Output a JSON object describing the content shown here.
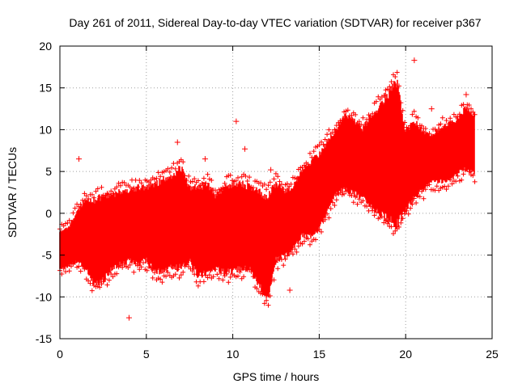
{
  "chart_data": {
    "type": "scatter",
    "title": "Day 261 of 2011, Sidereal Day-to-day VTEC variation (SDTVAR) for receiver p367",
    "xlabel": "GPS time / hours",
    "ylabel": "SDTVAR / TECUs",
    "xlim": [
      0,
      25
    ],
    "ylim": [
      -15,
      20
    ],
    "xticks": [
      0,
      5,
      10,
      15,
      20,
      25
    ],
    "yticks": [
      -15,
      -10,
      -5,
      0,
      5,
      10,
      15,
      20
    ],
    "grid": true,
    "marker": "+",
    "legend": "none",
    "colors": {
      "series": "#ff0000",
      "axes": "#000000",
      "grid": "#a0a0a0"
    },
    "series": [
      {
        "name": "SDTVAR",
        "envelope": {
          "x": [
            0.0,
            0.5,
            1.0,
            1.5,
            2.0,
            2.5,
            3.0,
            3.5,
            4.0,
            4.5,
            5.0,
            5.5,
            6.0,
            6.5,
            7.0,
            7.5,
            8.0,
            8.5,
            9.0,
            9.5,
            10.0,
            10.5,
            11.0,
            11.5,
            12.0,
            12.5,
            13.0,
            13.5,
            14.0,
            14.5,
            15.0,
            15.5,
            16.0,
            16.5,
            17.0,
            17.5,
            18.0,
            18.5,
            19.0,
            19.5,
            20.0,
            20.5,
            21.0,
            21.5,
            22.0,
            22.5,
            23.0,
            23.5,
            24.0
          ],
          "upper": [
            -2.0,
            -1.5,
            0.5,
            2.0,
            2.0,
            2.5,
            2.5,
            3.0,
            3.0,
            3.5,
            3.5,
            4.0,
            4.5,
            5.0,
            6.0,
            3.5,
            3.5,
            4.0,
            2.5,
            3.5,
            4.0,
            4.0,
            3.5,
            3.0,
            2.5,
            4.0,
            3.0,
            3.5,
            5.5,
            6.5,
            7.5,
            9.0,
            10.5,
            12.0,
            11.5,
            10.5,
            12.0,
            13.5,
            15.0,
            16.5,
            10.0,
            11.5,
            10.0,
            9.5,
            10.5,
            11.0,
            11.5,
            13.0,
            12.0
          ],
          "lower": [
            -7.0,
            -6.5,
            -6.0,
            -7.0,
            -9.0,
            -8.5,
            -7.0,
            -6.5,
            -6.0,
            -6.5,
            -6.0,
            -7.5,
            -7.5,
            -7.0,
            -7.0,
            -6.0,
            -8.0,
            -7.5,
            -7.0,
            -7.5,
            -7.5,
            -7.0,
            -7.0,
            -9.0,
            -11.0,
            -6.0,
            -5.5,
            -4.5,
            -3.0,
            -3.0,
            -2.0,
            0.0,
            2.0,
            2.5,
            2.0,
            1.5,
            0.5,
            -0.5,
            -1.5,
            -2.0,
            0.0,
            1.5,
            2.5,
            3.5,
            3.5,
            3.5,
            4.5,
            5.0,
            4.5
          ]
        },
        "outliers": [
          {
            "x": 1.1,
            "y": 6.5
          },
          {
            "x": 4.0,
            "y": -12.5
          },
          {
            "x": 6.8,
            "y": 8.5
          },
          {
            "x": 8.4,
            "y": 6.5
          },
          {
            "x": 10.2,
            "y": 11.0
          },
          {
            "x": 10.7,
            "y": 7.7
          },
          {
            "x": 12.2,
            "y": 5.2
          },
          {
            "x": 13.3,
            "y": -9.2
          },
          {
            "x": 20.5,
            "y": 18.3
          },
          {
            "x": 21.5,
            "y": 12.5
          },
          {
            "x": 23.5,
            "y": 14.2
          }
        ]
      }
    ]
  }
}
